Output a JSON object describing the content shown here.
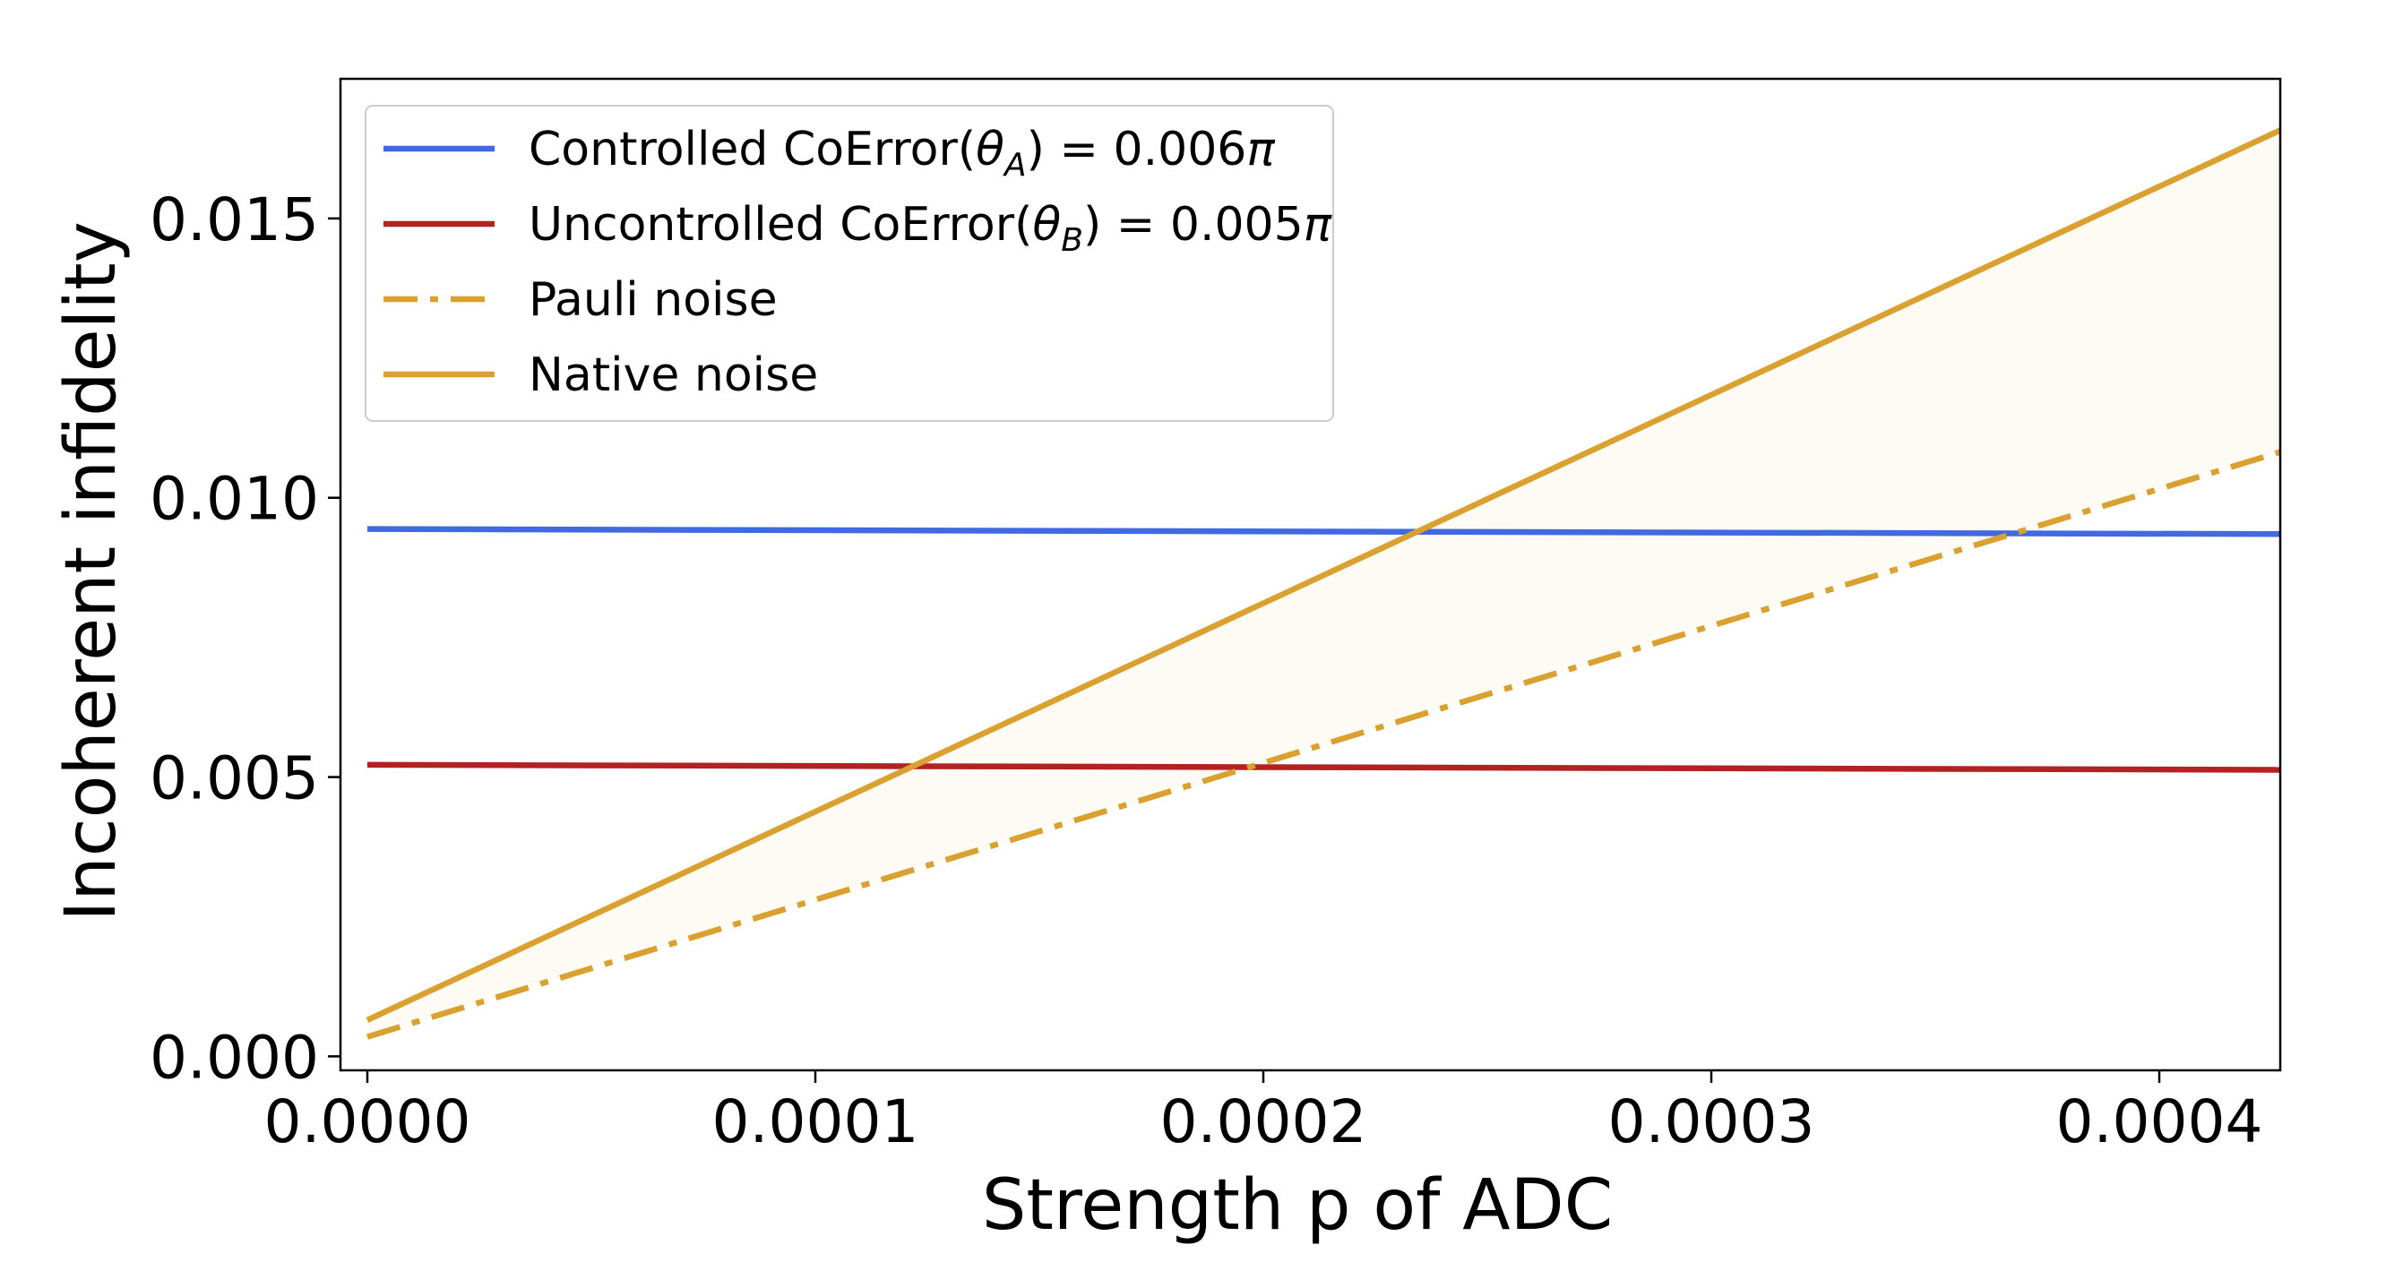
{
  "chart_data": {
    "type": "line",
    "xlabel": "Strength p of ADC",
    "ylabel": "Incoherent infidelity",
    "xlim": [
      -6e-06,
      0.000427
    ],
    "ylim": [
      -0.00025,
      0.0175
    ],
    "xticks": [
      0.0,
      0.0001,
      0.0002,
      0.0003,
      0.0004
    ],
    "xtick_labels": [
      "0.0000",
      "0.0001",
      "0.0002",
      "0.0003",
      "0.0004"
    ],
    "yticks": [
      0.0,
      0.005,
      0.01,
      0.015
    ],
    "ytick_labels": [
      "0.000",
      "0.005",
      "0.010",
      "0.015"
    ],
    "grid": false,
    "legend_position": "top-left",
    "x": [
      0.0,
      0.000427
    ],
    "series": [
      {
        "name": "Controlled CoError(θA) = 0.006π",
        "legend_parts": [
          "Controlled CoError(",
          "θ",
          "A",
          ") = 0.006",
          "π"
        ],
        "values": [
          0.00944,
          0.00935
        ],
        "color": "#4169e1",
        "style": "solid"
      },
      {
        "name": "Uncontrolled CoError(θB) = 0.005π",
        "legend_parts": [
          "Uncontrolled CoError(",
          "θ",
          "B",
          ") = 0.005",
          "π"
        ],
        "values": [
          0.00522,
          0.00513
        ],
        "color": "#b22222",
        "style": "solid"
      },
      {
        "name": "Pauli noise",
        "legend_parts": [
          "Pauli noise"
        ],
        "values": [
          0.00035,
          0.01082
        ],
        "color": "#daa030",
        "style": "dashdot"
      },
      {
        "name": "Native noise",
        "legend_parts": [
          "Native noise"
        ],
        "values": [
          0.00065,
          0.01658
        ],
        "color": "#daa030",
        "style": "solid"
      }
    ],
    "fill_between": {
      "upper": "Native noise",
      "lower": "Pauli noise",
      "color": "#fdfbf3"
    }
  }
}
